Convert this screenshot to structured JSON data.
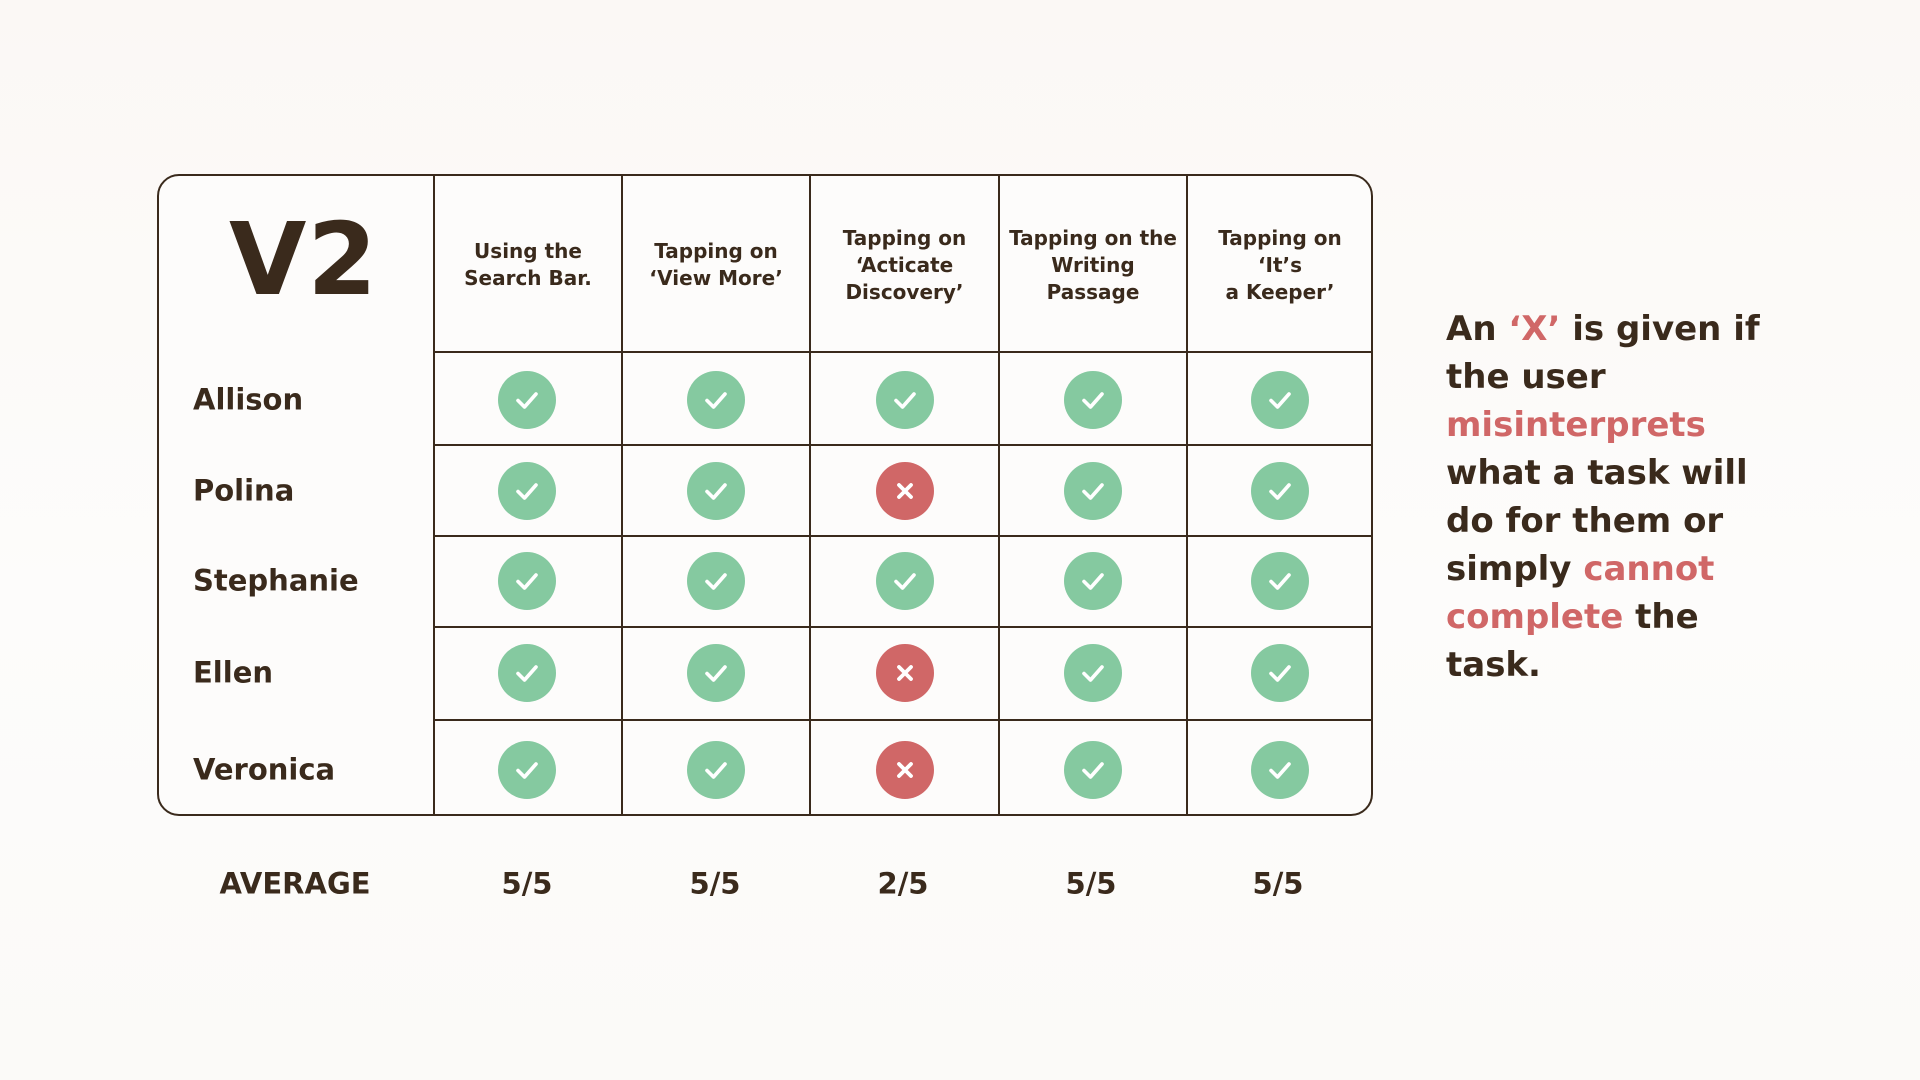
{
  "table": {
    "title": "V2",
    "columns": [
      "Using the\nSearch Bar.",
      "Tapping on\n‘View More’",
      "Tapping on\n‘Acticate\nDiscovery’",
      "Tapping on the\nWriting Passage",
      "Tapping on ‘It’s\na Keeper’"
    ],
    "rows": [
      {
        "name": "Allison",
        "results": [
          "check",
          "check",
          "check",
          "check",
          "check"
        ]
      },
      {
        "name": "Polina",
        "results": [
          "check",
          "check",
          "x",
          "check",
          "check"
        ]
      },
      {
        "name": "Stephanie",
        "results": [
          "check",
          "check",
          "check",
          "check",
          "check"
        ]
      },
      {
        "name": "Ellen",
        "results": [
          "check",
          "check",
          "x",
          "check",
          "check"
        ]
      },
      {
        "name": "Veronica",
        "results": [
          "check",
          "check",
          "x",
          "check",
          "check"
        ]
      }
    ]
  },
  "average": {
    "label": "AVERAGE",
    "values": [
      "5/5",
      "5/5",
      "2/5",
      "5/5",
      "5/5"
    ]
  },
  "note": {
    "parts": [
      {
        "text": "An ",
        "accent": false
      },
      {
        "text": "‘X’",
        "accent": true
      },
      {
        "text": " is given if the user ",
        "accent": false
      },
      {
        "text": "misinterprets",
        "accent": true
      },
      {
        "text": " what a task will do for them or simply ",
        "accent": false
      },
      {
        "text": "cannot complete",
        "accent": true
      },
      {
        "text": " the task.",
        "accent": false
      }
    ]
  },
  "colors": {
    "text": "#3a2a1c",
    "pass": "#85c9a0",
    "fail": "#d06767",
    "accent": "#d06767"
  },
  "icons": {
    "check": "check-icon",
    "x": "x-icon"
  }
}
